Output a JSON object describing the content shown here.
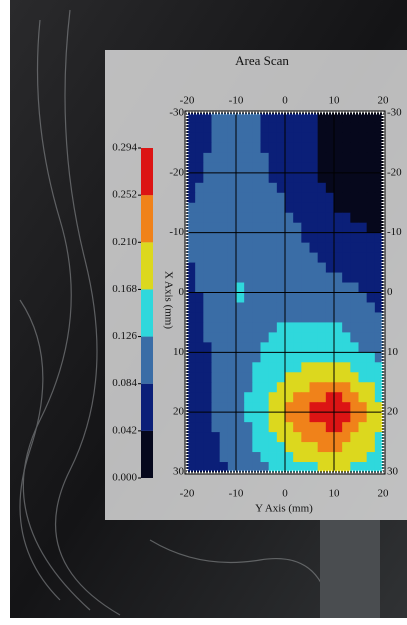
{
  "chart_data": {
    "type": "contour",
    "title": "Area Scan",
    "xlabel": "Y Axis (mm)",
    "ylabel": "X Axis (mm)",
    "x": [
      -20,
      -10,
      0,
      10,
      20
    ],
    "y": [
      -30,
      -20,
      -10,
      0,
      10,
      20,
      30
    ],
    "z": [
      [
        0.06,
        0.1,
        0.06,
        0.03,
        0.03
      ],
      [
        0.07,
        0.11,
        0.07,
        0.03,
        0.03
      ],
      [
        0.09,
        0.12,
        0.1,
        0.05,
        0.04
      ],
      [
        0.07,
        0.13,
        0.11,
        0.1,
        0.07
      ],
      [
        0.06,
        0.11,
        0.14,
        0.15,
        0.11
      ],
      [
        0.07,
        0.1,
        0.22,
        0.3,
        0.17
      ],
      [
        0.06,
        0.09,
        0.14,
        0.17,
        0.14
      ]
    ],
    "xlim": [
      -20,
      20
    ],
    "ylim": [
      -30,
      30
    ],
    "xticks": [
      -20,
      -10,
      0,
      10,
      20
    ],
    "yticks": [
      -30,
      -20,
      -10,
      0,
      10,
      20,
      30
    ],
    "levels": [
      {
        "value": 0,
        "label": "0.000"
      },
      {
        "value": 0.042,
        "label": "0.042"
      },
      {
        "value": 0.084,
        "label": "0.084"
      },
      {
        "value": 0.126,
        "label": "0.126"
      },
      {
        "value": 0.168,
        "label": "0.168"
      },
      {
        "value": 0.21,
        "label": "0.210"
      },
      {
        "value": 0.252,
        "label": "0.252"
      },
      {
        "value": 0.294,
        "label": "0.294"
      }
    ],
    "colors": [
      "#06081c",
      "#0b1f78",
      "#3a6da6",
      "#2fd8dc",
      "#dcd81e",
      "#f0821a",
      "#dc1414"
    ],
    "grid": true
  }
}
